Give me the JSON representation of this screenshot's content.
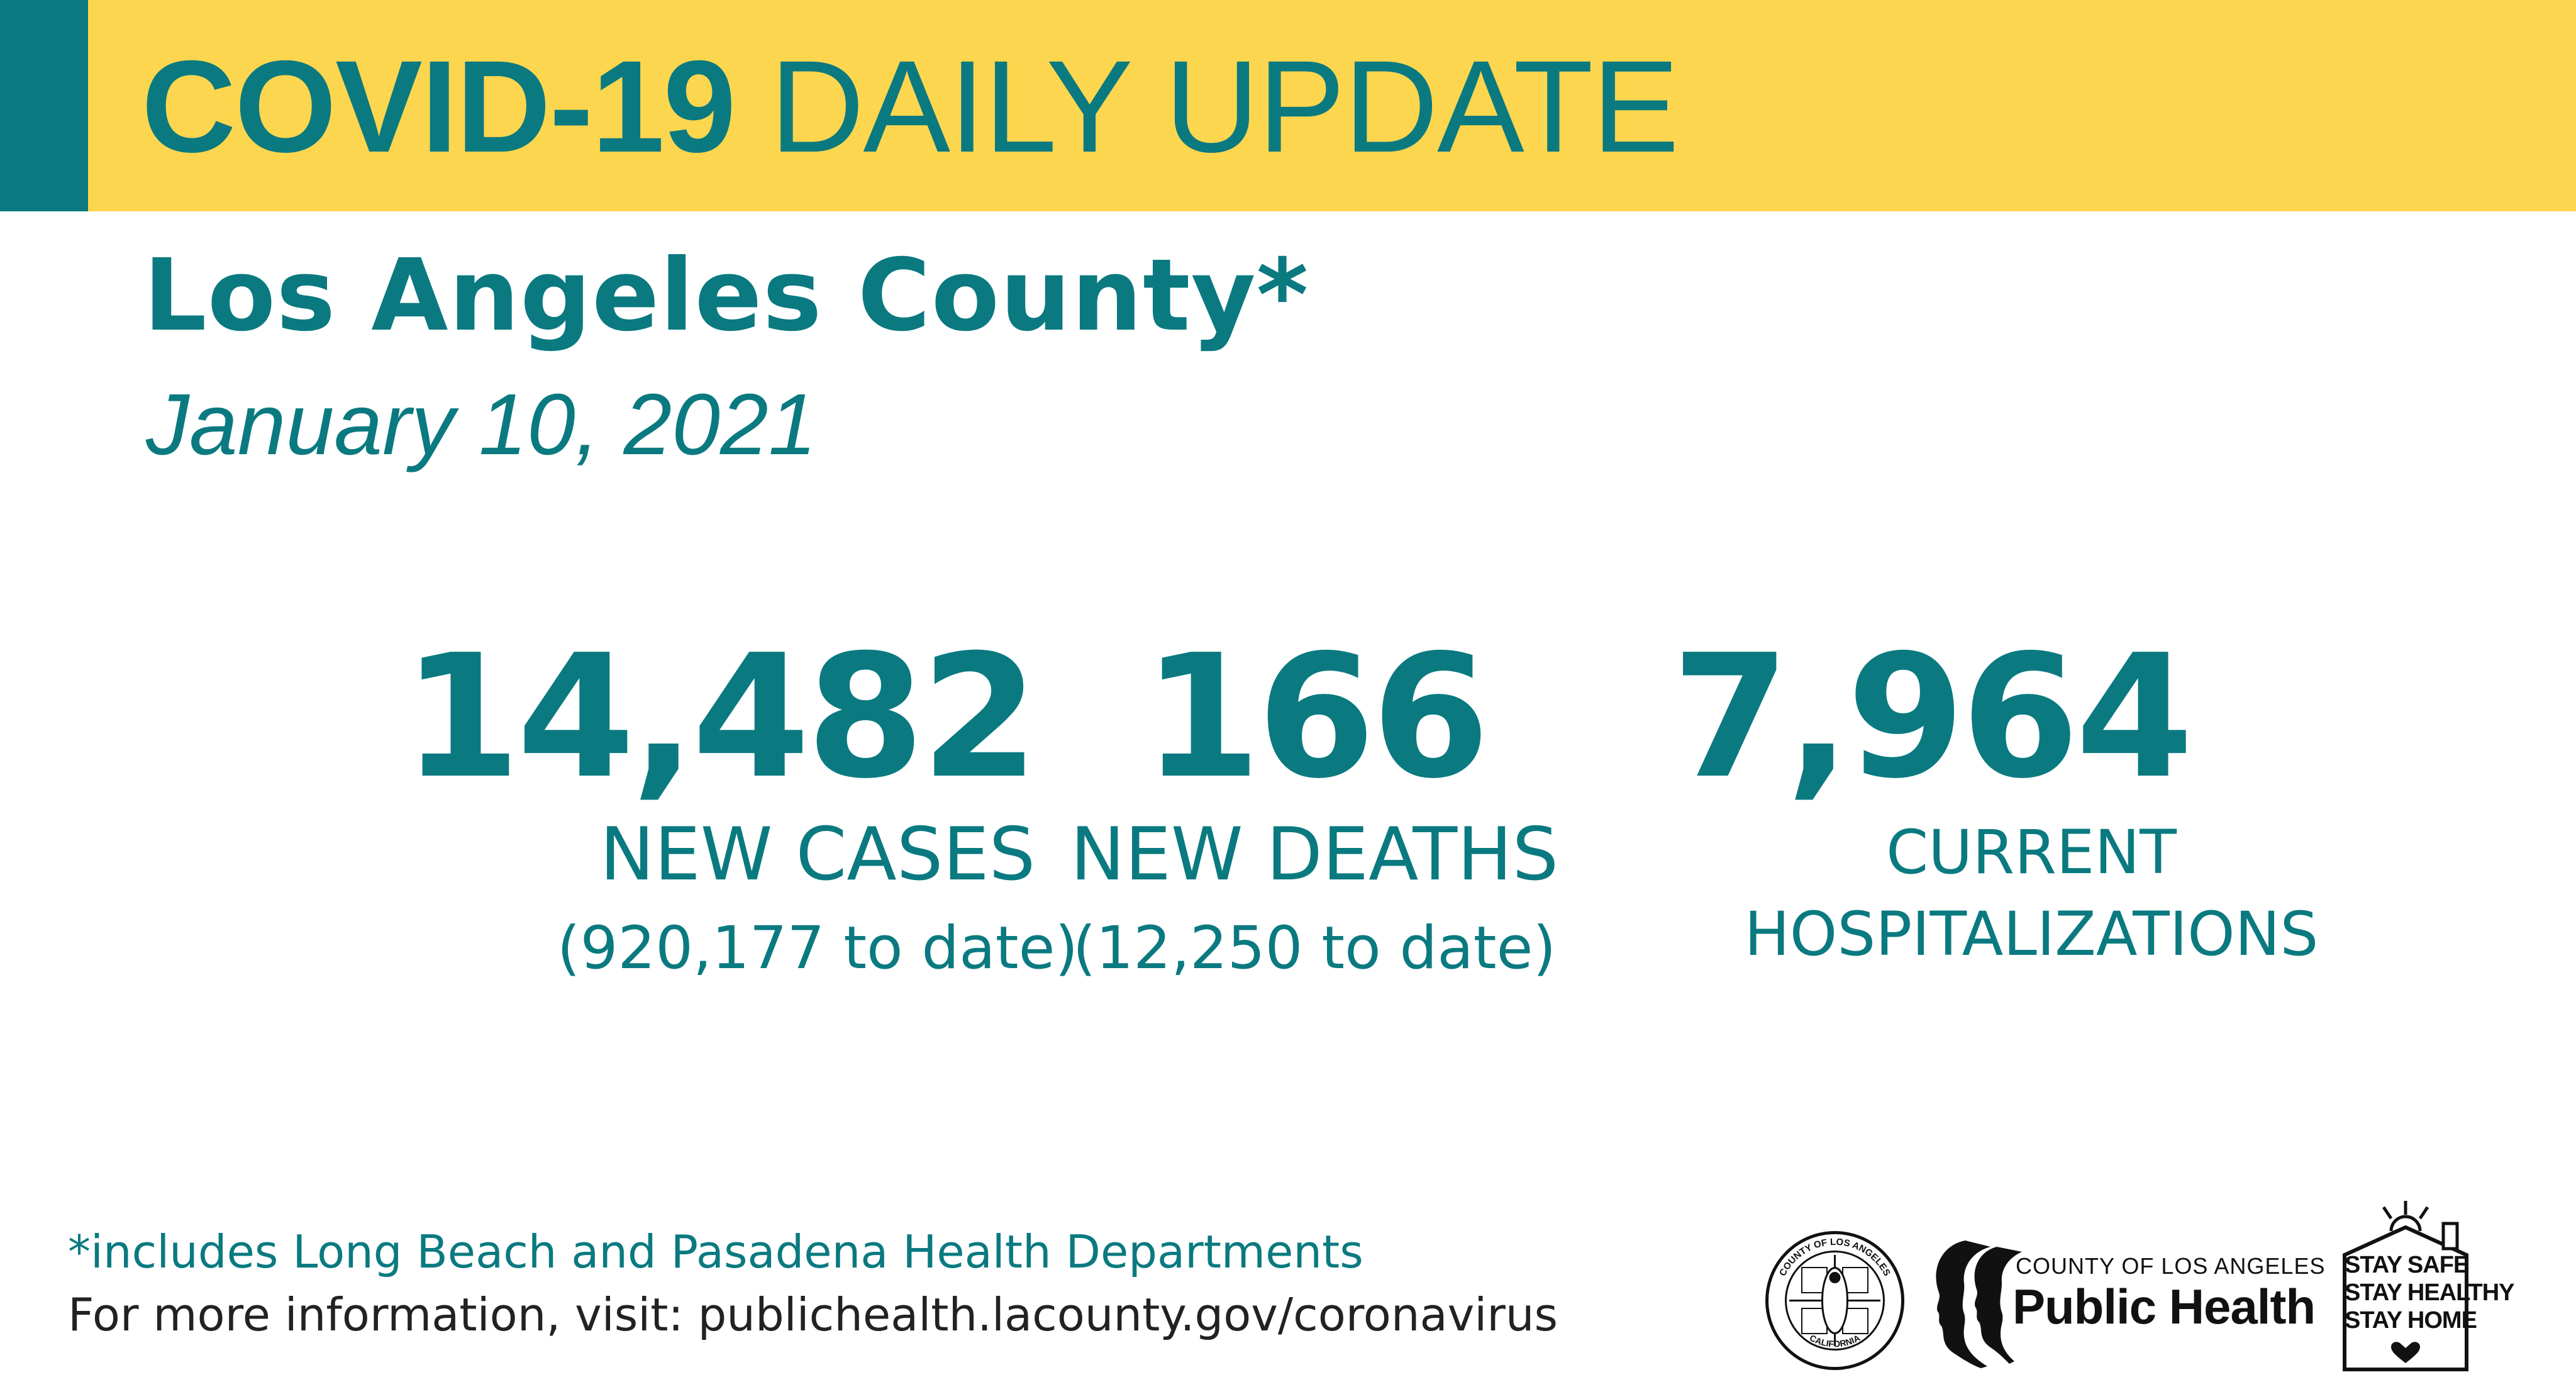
{
  "banner": {
    "title_bold": "COVID-19",
    "title_light": "DAILY UPDATE",
    "color": "#fdd64f",
    "accent_color": "#0a7a80"
  },
  "header": {
    "county": "Los Angeles County*",
    "date": "January 10, 2021"
  },
  "stats": [
    {
      "value": "14,482",
      "label": "NEW CASES",
      "sub": "(920,177 to date)"
    },
    {
      "value": "166",
      "label": "NEW DEATHS",
      "sub": "(12,250  to date)"
    },
    {
      "value": "7,964",
      "label_line1": "CURRENT",
      "label_line2": "HOSPITALIZATIONS"
    }
  ],
  "footer": {
    "footnote": "*includes Long Beach and Pasadena Health Departments",
    "more_info": "For more information, visit: publichealth.lacounty.gov/coronavirus"
  },
  "logos": {
    "seal": {
      "icon": "county-seal-icon",
      "top_text": "COUNTY OF LOS ANGELES",
      "bottom_text": "CALIFORNIA"
    },
    "public_health": {
      "icon": "silhouette-faces-icon",
      "small_text": "COUNTY OF LOS ANGELES",
      "big_text": "Public Health"
    },
    "stay_safe": {
      "icon": "house-sun-icon",
      "lines": [
        "STAY SAFE",
        "STAY HEALTHY",
        "STAY HOME"
      ]
    }
  }
}
